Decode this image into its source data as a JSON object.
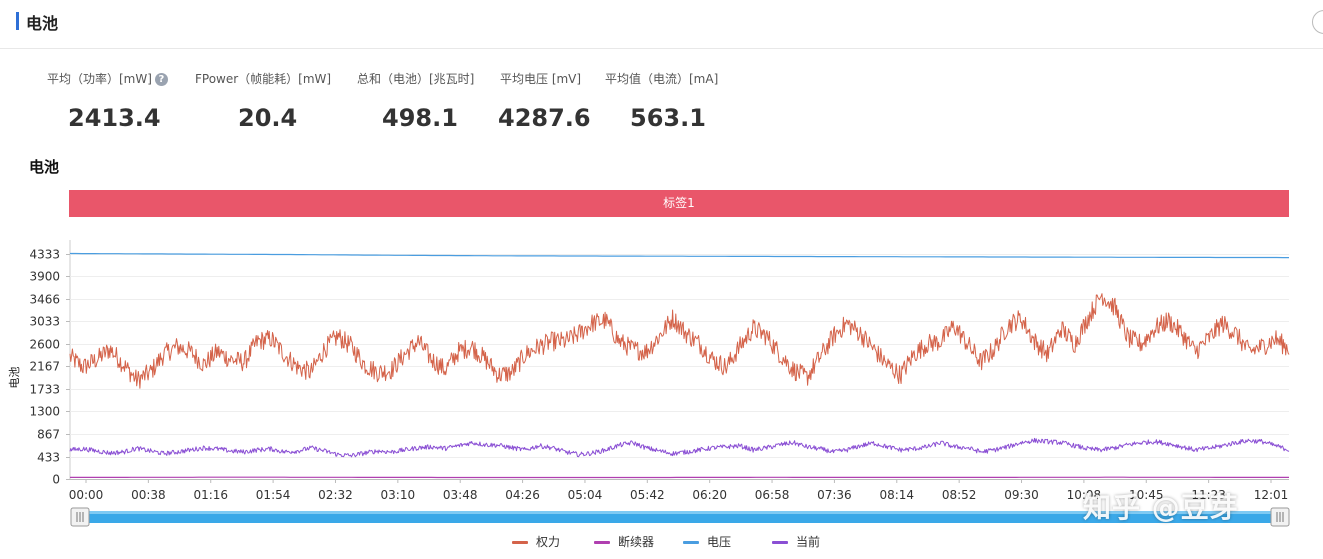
{
  "header": {
    "title": "电池"
  },
  "stats": [
    {
      "label": "平均（功率）[mW]",
      "value": "2413.4",
      "help": "?"
    },
    {
      "label": "FPower（帧能耗）[mW]",
      "value": "20.4"
    },
    {
      "label": "总和（电池）[兆瓦时]",
      "value": "498.1"
    },
    {
      "label": "平均电压 [mV]",
      "value": "4287.6"
    },
    {
      "label": "平均值（电流）[mA]",
      "value": "563.1"
    }
  ],
  "section": {
    "title": "电池"
  },
  "tag_bar": {
    "label": "标签1",
    "color": "#e9566a"
  },
  "watermark": "知乎 @豆芽",
  "chart_data": {
    "type": "line",
    "ylabel": "电池",
    "y_ticks": [
      0,
      433,
      867,
      1300,
      1733,
      2167,
      2600,
      3033,
      3466,
      3900,
      4333
    ],
    "ylim": [
      0,
      4600
    ],
    "x_ticks": [
      "00:00",
      "00:38",
      "01:16",
      "01:54",
      "02:32",
      "03:10",
      "03:48",
      "04:26",
      "05:04",
      "05:42",
      "06:20",
      "06:58",
      "07:36",
      "08:14",
      "08:52",
      "09:30",
      "10:08",
      "10:45",
      "11:23",
      "12:01"
    ],
    "x_range_seconds": [
      0,
      740
    ],
    "grid": "horizontal",
    "legend_position": "bottom",
    "series": [
      {
        "name": "权力",
        "color": "#d4634a",
        "values": [
          2350,
          2150,
          2300,
          2500,
          2200,
          1900,
          2050,
          2400,
          2550,
          2450,
          2200,
          2450,
          2300,
          2250,
          2650,
          2700,
          2400,
          2150,
          2050,
          2500,
          2750,
          2550,
          2200,
          2050,
          2100,
          2400,
          2650,
          2300,
          2100,
          2450,
          2550,
          2300,
          2000,
          2050,
          2400,
          2550,
          2650,
          2650,
          2800,
          3000,
          3050,
          2650,
          2500,
          2450,
          2750,
          3100,
          2800,
          2600,
          2300,
          2150,
          2550,
          2900,
          2750,
          2400,
          2100,
          1950,
          2350,
          2750,
          3000,
          2800,
          2500,
          2200,
          2000,
          2400,
          2600,
          2650,
          2950,
          2600,
          2250,
          2500,
          2950,
          3100,
          2650,
          2400,
          2900,
          2600,
          3100,
          3550,
          3300,
          2700,
          2600,
          2900,
          3050,
          2800,
          2450,
          2700,
          3000,
          2800,
          2450,
          2550,
          2700,
          2500
        ],
        "dense": true,
        "noise": 190
      },
      {
        "name": "断续器",
        "color": "#b03fb0",
        "values": [
          30,
          35,
          30,
          28,
          32,
          30,
          34,
          30
        ],
        "dense": false,
        "noise": 0
      },
      {
        "name": "电压",
        "color": "#4a9de0",
        "values": [
          4340,
          4330,
          4320,
          4305,
          4295,
          4290,
          4285,
          4280,
          4275,
          4270,
          4265,
          4262
        ],
        "dense": false,
        "noise": 0
      },
      {
        "name": "当前",
        "color": "#8a4fd4",
        "values": [
          560,
          580,
          540,
          500,
          520,
          590,
          540,
          490,
          520,
          560,
          600,
          580,
          540,
          520,
          560,
          580,
          520,
          540,
          600,
          540,
          470,
          450,
          500,
          540,
          520,
          560,
          600,
          620,
          590,
          640,
          700,
          660,
          650,
          600,
          560,
          640,
          600,
          520,
          470,
          500,
          560,
          650,
          700,
          600,
          540,
          490,
          520,
          560,
          600,
          620,
          640,
          560,
          600,
          660,
          700,
          620,
          580,
          520,
          560,
          640,
          690,
          620,
          560,
          580,
          620,
          700,
          620,
          600,
          520,
          560,
          620,
          700,
          740,
          720,
          700,
          640,
          580,
          560,
          600,
          660,
          700,
          720,
          680,
          620,
          560,
          590,
          640,
          700,
          740,
          720,
          640,
          560
        ],
        "dense": true,
        "noise": 45
      }
    ]
  }
}
